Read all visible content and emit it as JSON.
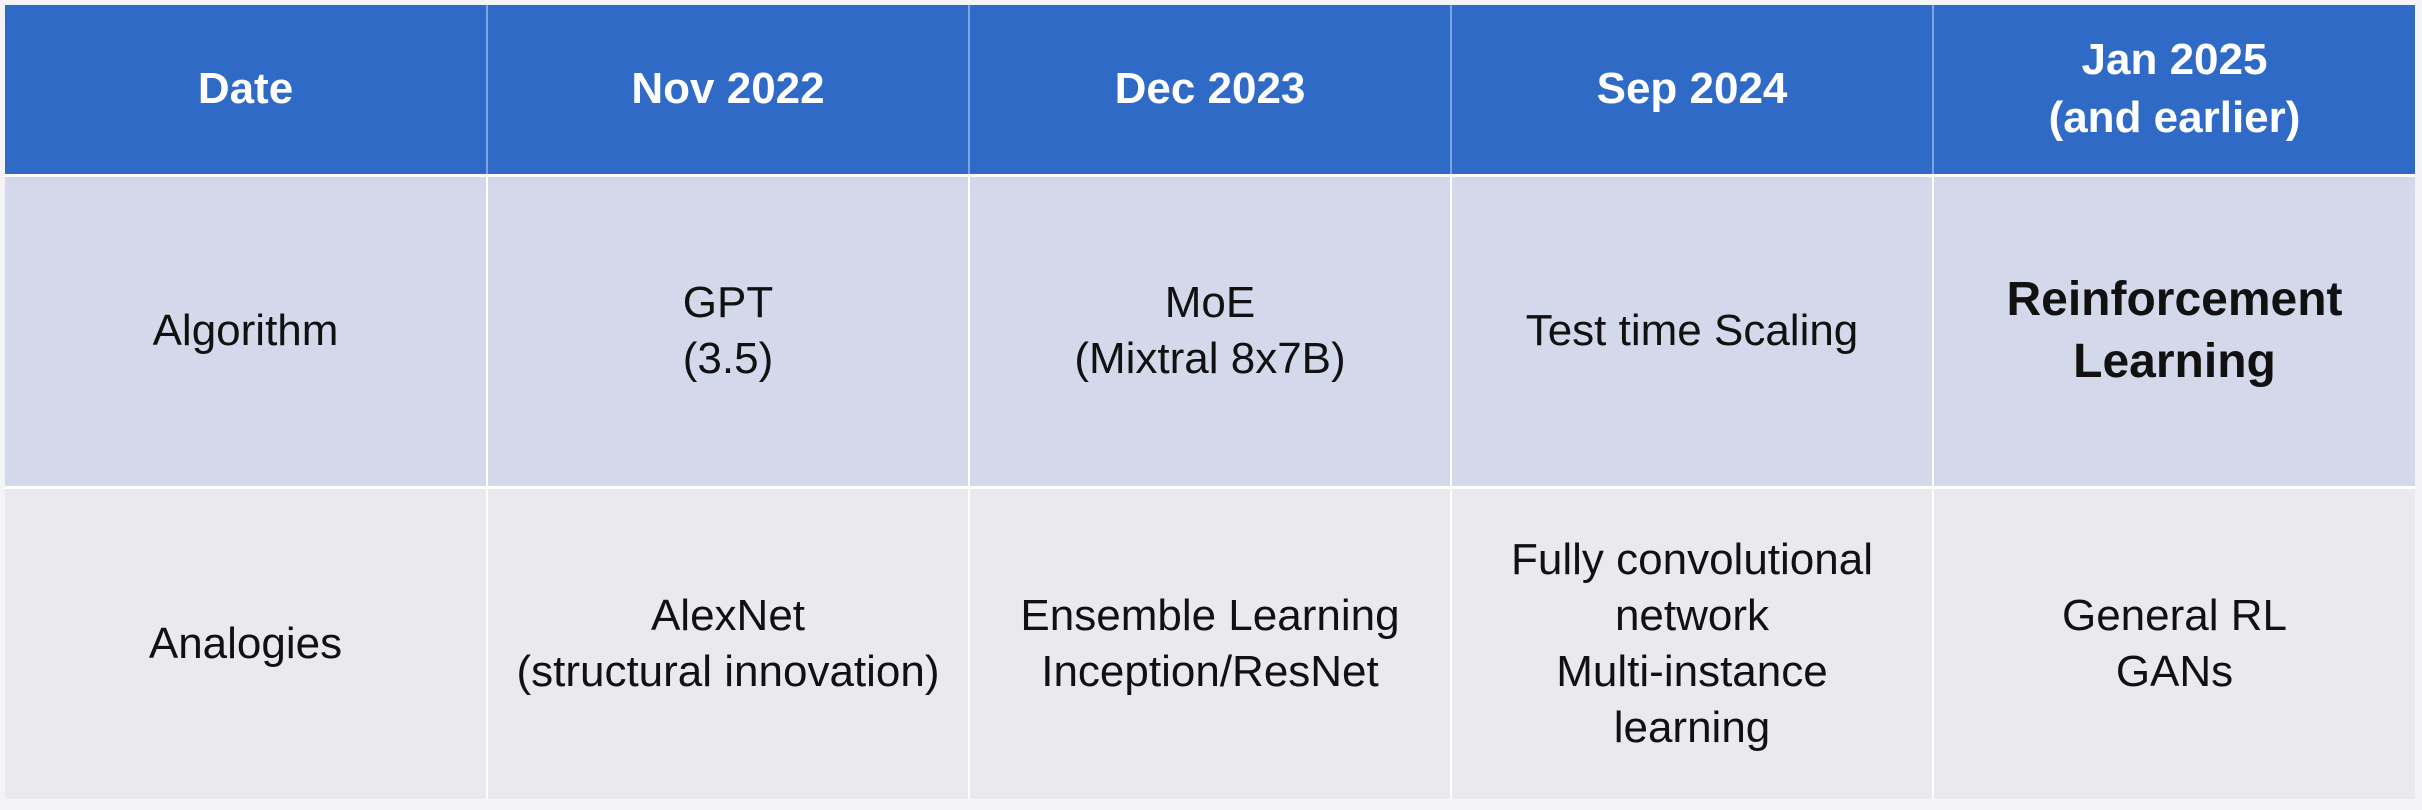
{
  "table": {
    "header": {
      "date_label": "Date",
      "columns": [
        [
          "Nov 2022"
        ],
        [
          "Dec 2023"
        ],
        [
          "Sep 2024"
        ],
        [
          "Jan 2025",
          "(and earlier)"
        ]
      ]
    },
    "rows": [
      {
        "label": "Algorithm",
        "cells": [
          [
            "GPT",
            "(3.5)"
          ],
          [
            "MoE",
            "(Mixtral 8x7B)"
          ],
          [
            "Test time Scaling"
          ],
          [
            "Reinforcement",
            "Learning"
          ]
        ]
      },
      {
        "label": "Analogies",
        "cells": [
          [
            "AlexNet",
            "(structural innovation)"
          ],
          [
            "Ensemble Learning",
            "Inception/ResNet"
          ],
          [
            "Fully convolutional",
            "network",
            "Multi-instance",
            "learning"
          ],
          [
            "General RL",
            "GANs"
          ]
        ]
      }
    ]
  }
}
